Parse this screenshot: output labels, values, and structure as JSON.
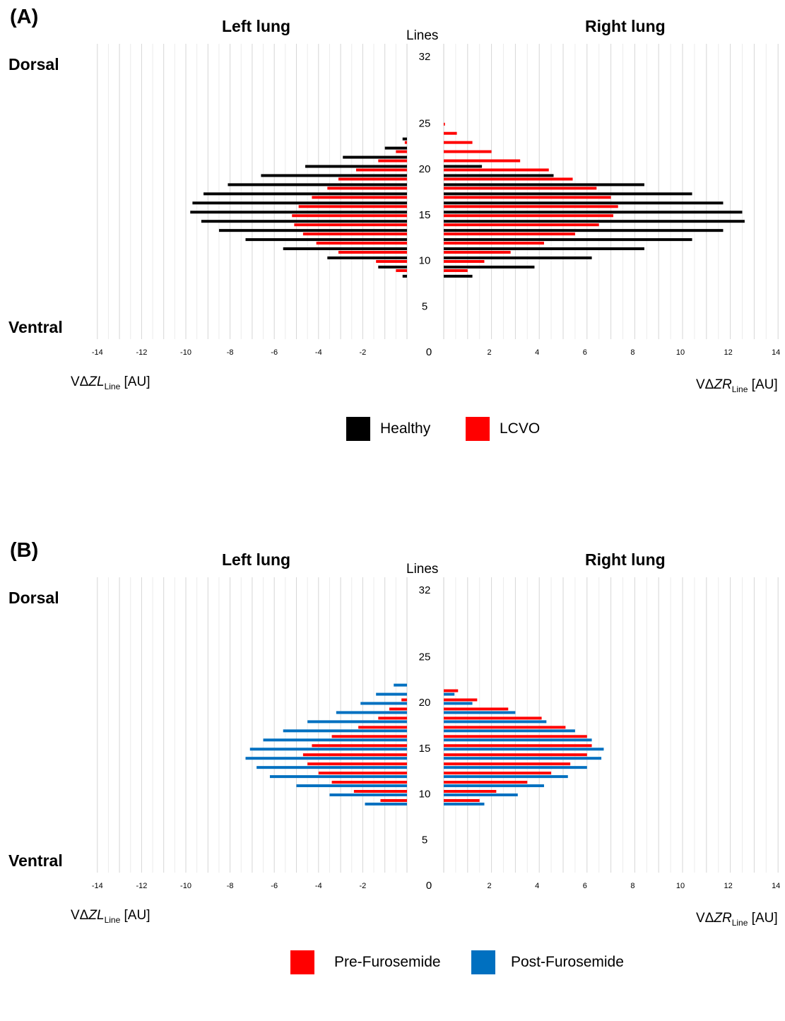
{
  "chart_data": [
    {
      "type": "bar",
      "panel_label": "(A)",
      "left_title": "Left lung",
      "right_title": "Right lung",
      "center_label": "Lines",
      "top_label": "Dorsal",
      "bottom_label": "Ventral",
      "center_ticks": [
        "32",
        "25",
        "20",
        "15",
        "10",
        "5",
        "0"
      ],
      "x_ticks_left": [
        "-14",
        "-12",
        "-10",
        "-8",
        "-6",
        "-4",
        "-2"
      ],
      "x_ticks_right": [
        "2",
        "4",
        "6",
        "8",
        "10",
        "12",
        "14"
      ],
      "left_axis": {
        "prefix": "VΔ",
        "var": "ZL",
        "sub": "Line",
        "unit": "[AU]"
      },
      "right_axis": {
        "prefix": "VΔ",
        "var": "ZR",
        "sub": "Line",
        "unit": "[AU]"
      },
      "xlim": [
        0,
        14
      ],
      "legend_position": "bottom-center",
      "series": [
        {
          "name": "Healthy",
          "color": "#000000",
          "left": [
            [
              8,
              0.2
            ],
            [
              9,
              1.3
            ],
            [
              10,
              3.6
            ],
            [
              11,
              5.6
            ],
            [
              12,
              7.3
            ],
            [
              13,
              8.5
            ],
            [
              14,
              9.3
            ],
            [
              15,
              9.8
            ],
            [
              16,
              9.7
            ],
            [
              17,
              9.2
            ],
            [
              18,
              8.1
            ],
            [
              19,
              6.6
            ],
            [
              20,
              4.6
            ],
            [
              21,
              2.9
            ],
            [
              22,
              1.0
            ],
            [
              23,
              0.2
            ]
          ],
          "right": [
            [
              8,
              1.2
            ],
            [
              9,
              3.8
            ],
            [
              10,
              6.2
            ],
            [
              11,
              8.4
            ],
            [
              12,
              10.4
            ],
            [
              13,
              11.7
            ],
            [
              14,
              12.6
            ],
            [
              15,
              12.5
            ],
            [
              16,
              11.7
            ],
            [
              17,
              10.4
            ],
            [
              18,
              8.4
            ],
            [
              19,
              4.6
            ],
            [
              20,
              1.6
            ]
          ]
        },
        {
          "name": "LCVO",
          "color": "#ff0000",
          "left": [
            [
              9,
              0.5
            ],
            [
              10,
              1.4
            ],
            [
              11,
              3.1
            ],
            [
              12,
              4.1
            ],
            [
              13,
              4.7
            ],
            [
              14,
              5.1
            ],
            [
              15,
              5.2
            ],
            [
              16,
              4.9
            ],
            [
              17,
              4.3
            ],
            [
              18,
              3.6
            ],
            [
              19,
              3.1
            ],
            [
              20,
              2.3
            ],
            [
              21,
              1.3
            ],
            [
              22,
              0.5
            ],
            [
              23,
              0.1
            ]
          ],
          "right": [
            [
              9,
              1.0
            ],
            [
              10,
              1.7
            ],
            [
              11,
              2.8
            ],
            [
              12,
              4.2
            ],
            [
              13,
              5.5
            ],
            [
              14,
              6.5
            ],
            [
              15,
              7.1
            ],
            [
              16,
              7.3
            ],
            [
              17,
              7.0
            ],
            [
              18,
              6.4
            ],
            [
              19,
              5.4
            ],
            [
              20,
              4.4
            ],
            [
              21,
              3.2
            ],
            [
              22,
              2.0
            ],
            [
              23,
              1.2
            ],
            [
              24,
              0.55
            ],
            [
              25,
              0.05
            ]
          ]
        }
      ]
    },
    {
      "type": "bar",
      "panel_label": "(B)",
      "left_title": "Left lung",
      "right_title": "Right lung",
      "center_label": "Lines",
      "top_label": "Dorsal",
      "bottom_label": "Ventral",
      "center_ticks": [
        "32",
        "25",
        "20",
        "15",
        "10",
        "5",
        "0"
      ],
      "x_ticks_left": [
        "-14",
        "-12",
        "-10",
        "-8",
        "-6",
        "-4",
        "-2"
      ],
      "x_ticks_right": [
        "2",
        "4",
        "6",
        "8",
        "10",
        "12",
        "14"
      ],
      "left_axis": {
        "prefix": "VΔ",
        "var": "ZL",
        "sub": "Line",
        "unit": "[AU]"
      },
      "right_axis": {
        "prefix": "VΔ",
        "var": "ZR",
        "sub": "Line",
        "unit": "[AU]"
      },
      "xlim": [
        0,
        14
      ],
      "legend_position": "bottom-center",
      "series": [
        {
          "name": "Pre-Furosemide",
          "color": "#ff0000",
          "left": [
            [
              9,
              1.2
            ],
            [
              10,
              2.4
            ],
            [
              11,
              3.4
            ],
            [
              12,
              4.0
            ],
            [
              13,
              4.5
            ],
            [
              14,
              4.7
            ],
            [
              15,
              4.3
            ],
            [
              16,
              3.4
            ],
            [
              17,
              2.2
            ],
            [
              18,
              1.3
            ],
            [
              19,
              0.8
            ],
            [
              20,
              0.25
            ]
          ],
          "right": [
            [
              9,
              1.5
            ],
            [
              10,
              2.2
            ],
            [
              11,
              3.5
            ],
            [
              12,
              4.5
            ],
            [
              13,
              5.3
            ],
            [
              14,
              6.0
            ],
            [
              15,
              6.2
            ],
            [
              16,
              6.0
            ],
            [
              17,
              5.1
            ],
            [
              18,
              4.1
            ],
            [
              19,
              2.7
            ],
            [
              20,
              1.4
            ],
            [
              21,
              0.6
            ]
          ]
        },
        {
          "name": "Post-Furosemide",
          "color": "#0070c0",
          "left": [
            [
              9,
              1.9
            ],
            [
              10,
              3.5
            ],
            [
              11,
              5.0
            ],
            [
              12,
              6.2
            ],
            [
              13,
              6.8
            ],
            [
              14,
              7.3
            ],
            [
              15,
              7.1
            ],
            [
              16,
              6.5
            ],
            [
              17,
              5.6
            ],
            [
              18,
              4.5
            ],
            [
              19,
              3.2
            ],
            [
              20,
              2.1
            ],
            [
              21,
              1.4
            ],
            [
              22,
              0.6
            ]
          ],
          "right": [
            [
              9,
              1.7
            ],
            [
              10,
              3.1
            ],
            [
              11,
              4.2
            ],
            [
              12,
              5.2
            ],
            [
              13,
              6.0
            ],
            [
              14,
              6.6
            ],
            [
              15,
              6.7
            ],
            [
              16,
              6.2
            ],
            [
              17,
              5.5
            ],
            [
              18,
              4.3
            ],
            [
              19,
              3.0
            ],
            [
              20,
              1.2
            ],
            [
              21,
              0.45
            ]
          ]
        }
      ]
    }
  ]
}
